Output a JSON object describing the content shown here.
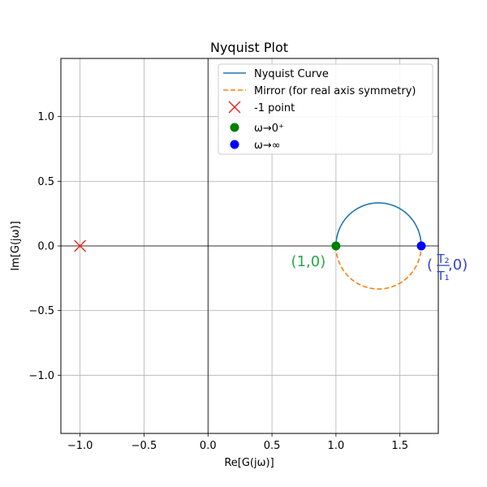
{
  "chart_data": {
    "type": "line",
    "title": "Nyquist Plot",
    "xlabel": "Re[G(jω)]",
    "ylabel": "Im[G(jω)]",
    "xlim": [
      -1.15,
      1.8
    ],
    "ylim": [
      -1.45,
      1.45
    ],
    "xticks": [
      -1.0,
      -0.5,
      0.0,
      0.5,
      1.0,
      1.5
    ],
    "xtick_labels": [
      "−1.0",
      "−0.5",
      "0.0",
      "0.5",
      "1.0",
      "1.5"
    ],
    "yticks": [
      -1.0,
      -0.5,
      0.0,
      0.5,
      1.0
    ],
    "ytick_labels": [
      "−1.0",
      "−0.5",
      "0.0",
      "0.5",
      "1.0"
    ],
    "grid": true,
    "legend_position": "top-right",
    "series": [
      {
        "name": "Nyquist Curve",
        "style": "solid",
        "color": "#1f77b4",
        "shape": "semicircle-upper",
        "center": [
          1.333,
          0
        ],
        "radius": 0.333
      },
      {
        "name": "Mirror (for real axis symmetry)",
        "style": "dashed",
        "color": "#ff7f0e",
        "shape": "semicircle-lower",
        "center": [
          1.333,
          0
        ],
        "radius": 0.333
      }
    ],
    "points": [
      {
        "name": "-1 point",
        "x": -1.0,
        "y": 0.0,
        "marker": "x",
        "color": "#e8231b"
      },
      {
        "name": "ω→0⁺",
        "x": 1.0,
        "y": 0.0,
        "marker": "o",
        "color": "#008000"
      },
      {
        "name": "ω→∞",
        "x": 1.667,
        "y": 0.0,
        "marker": "o",
        "color": "#0000ff"
      }
    ],
    "annotations": [
      {
        "text": "(1,0)",
        "x": 1.0,
        "y": 0.0,
        "color": "#22aa44"
      },
      {
        "label": "(T₂/T₁,0)",
        "numerator": "T₂",
        "denominator": "T₁",
        "prefix": "(",
        "suffix": ",0)",
        "x": 1.667,
        "y": 0.0,
        "color": "#3344cc"
      }
    ]
  }
}
